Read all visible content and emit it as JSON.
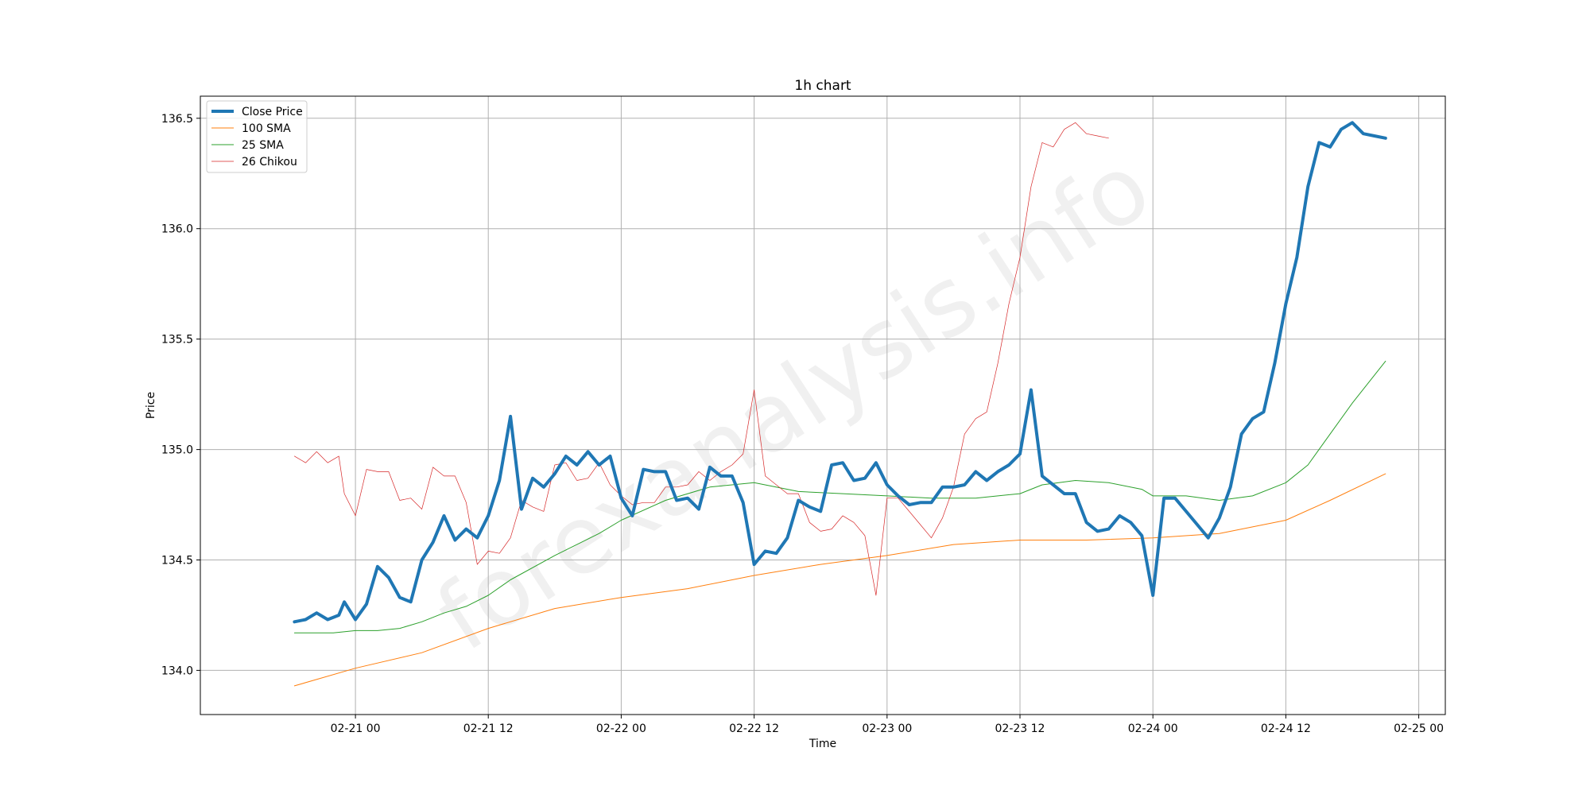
{
  "chart_data": {
    "type": "line",
    "title": "1h chart",
    "xlabel": "Time",
    "ylabel": "Price",
    "x_tick_labels": [
      "02-21 00",
      "02-21 12",
      "02-22 00",
      "02-22 12",
      "02-23 00",
      "02-23 12",
      "02-24 00",
      "02-24 12",
      "02-25 00"
    ],
    "x_ticks": [
      "2024-02-21T00:00",
      "2024-02-21T12:00",
      "2024-02-22T00:00",
      "2024-02-22T12:00",
      "2024-02-23T00:00",
      "2024-02-23T12:00",
      "2024-02-24T00:00",
      "2024-02-24T12:00",
      "2024-02-25T00:00"
    ],
    "y_ticks": [
      134.0,
      134.5,
      135.0,
      135.5,
      136.0,
      136.5
    ],
    "y_tick_labels": [
      "134.0",
      "134.5",
      "135.0",
      "135.5",
      "136.0",
      "136.5"
    ],
    "xlim": [
      "2024-02-20T10:00",
      "2024-02-25T02:24"
    ],
    "ylim": [
      133.8,
      136.6
    ],
    "grid": true,
    "legend_position": "top-left",
    "watermark": "forexanalysis.info",
    "series": [
      {
        "name": "Close Price",
        "color": "#1f77b4",
        "width": 4,
        "points": [
          [
            "2024-02-20T18:30",
            134.22
          ],
          [
            "2024-02-20T19:30",
            134.23
          ],
          [
            "2024-02-20T20:30",
            134.26
          ],
          [
            "2024-02-20T21:30",
            134.23
          ],
          [
            "2024-02-20T22:30",
            134.25
          ],
          [
            "2024-02-20T23:00",
            134.31
          ],
          [
            "2024-02-21T00:00",
            134.23
          ],
          [
            "2024-02-21T01:00",
            134.3
          ],
          [
            "2024-02-21T02:00",
            134.47
          ],
          [
            "2024-02-21T03:00",
            134.42
          ],
          [
            "2024-02-21T04:00",
            134.33
          ],
          [
            "2024-02-21T05:00",
            134.31
          ],
          [
            "2024-02-21T06:00",
            134.5
          ],
          [
            "2024-02-21T07:00",
            134.58
          ],
          [
            "2024-02-21T08:00",
            134.7
          ],
          [
            "2024-02-21T09:00",
            134.59
          ],
          [
            "2024-02-21T10:00",
            134.64
          ],
          [
            "2024-02-21T11:00",
            134.6
          ],
          [
            "2024-02-21T12:00",
            134.7
          ],
          [
            "2024-02-21T13:00",
            134.86
          ],
          [
            "2024-02-21T14:00",
            135.15
          ],
          [
            "2024-02-21T15:00",
            134.73
          ],
          [
            "2024-02-21T16:00",
            134.87
          ],
          [
            "2024-02-21T17:00",
            134.83
          ],
          [
            "2024-02-21T18:00",
            134.89
          ],
          [
            "2024-02-21T19:00",
            134.97
          ],
          [
            "2024-02-21T20:00",
            134.93
          ],
          [
            "2024-02-21T21:00",
            134.99
          ],
          [
            "2024-02-21T22:00",
            134.93
          ],
          [
            "2024-02-21T23:00",
            134.97
          ],
          [
            "2024-02-22T00:00",
            134.78
          ],
          [
            "2024-02-22T01:00",
            134.7
          ],
          [
            "2024-02-22T02:00",
            134.91
          ],
          [
            "2024-02-22T03:00",
            134.9
          ],
          [
            "2024-02-22T04:00",
            134.9
          ],
          [
            "2024-02-22T05:00",
            134.77
          ],
          [
            "2024-02-22T06:00",
            134.78
          ],
          [
            "2024-02-22T07:00",
            134.73
          ],
          [
            "2024-02-22T08:00",
            134.92
          ],
          [
            "2024-02-22T09:00",
            134.88
          ],
          [
            "2024-02-22T10:00",
            134.88
          ],
          [
            "2024-02-22T11:00",
            134.76
          ],
          [
            "2024-02-22T12:00",
            134.48
          ],
          [
            "2024-02-22T13:00",
            134.54
          ],
          [
            "2024-02-22T14:00",
            134.53
          ],
          [
            "2024-02-22T15:00",
            134.6
          ],
          [
            "2024-02-22T16:00",
            134.77
          ],
          [
            "2024-02-22T17:00",
            134.74
          ],
          [
            "2024-02-22T18:00",
            134.72
          ],
          [
            "2024-02-22T19:00",
            134.93
          ],
          [
            "2024-02-22T20:00",
            134.94
          ],
          [
            "2024-02-22T21:00",
            134.86
          ],
          [
            "2024-02-22T22:00",
            134.87
          ],
          [
            "2024-02-22T23:00",
            134.94
          ],
          [
            "2024-02-23T00:00",
            134.84
          ],
          [
            "2024-02-23T01:00",
            134.79
          ],
          [
            "2024-02-23T02:00",
            134.75
          ],
          [
            "2024-02-23T03:00",
            134.76
          ],
          [
            "2024-02-23T04:00",
            134.76
          ],
          [
            "2024-02-23T05:00",
            134.83
          ],
          [
            "2024-02-23T06:00",
            134.83
          ],
          [
            "2024-02-23T07:00",
            134.84
          ],
          [
            "2024-02-23T08:00",
            134.9
          ],
          [
            "2024-02-23T09:00",
            134.86
          ],
          [
            "2024-02-23T10:00",
            134.9
          ],
          [
            "2024-02-23T11:00",
            134.93
          ],
          [
            "2024-02-23T12:00",
            134.98
          ],
          [
            "2024-02-23T13:00",
            135.27
          ],
          [
            "2024-02-23T14:00",
            134.88
          ],
          [
            "2024-02-23T15:00",
            134.84
          ],
          [
            "2024-02-23T16:00",
            134.8
          ],
          [
            "2024-02-23T17:00",
            134.8
          ],
          [
            "2024-02-23T18:00",
            134.67
          ],
          [
            "2024-02-23T19:00",
            134.63
          ],
          [
            "2024-02-23T20:00",
            134.64
          ],
          [
            "2024-02-23T21:00",
            134.7
          ],
          [
            "2024-02-23T22:00",
            134.67
          ],
          [
            "2024-02-23T23:00",
            134.61
          ],
          [
            "2024-02-24T00:00",
            134.34
          ],
          [
            "2024-02-24T01:00",
            134.78
          ],
          [
            "2024-02-24T02:00",
            134.78
          ],
          [
            "2024-02-24T03:00",
            134.72
          ],
          [
            "2024-02-24T04:00",
            134.66
          ],
          [
            "2024-02-24T05:00",
            134.6
          ],
          [
            "2024-02-24T06:00",
            134.69
          ],
          [
            "2024-02-24T07:00",
            134.83
          ],
          [
            "2024-02-24T08:00",
            135.07
          ],
          [
            "2024-02-24T09:00",
            135.14
          ],
          [
            "2024-02-24T10:00",
            135.17
          ],
          [
            "2024-02-24T11:00",
            135.39
          ],
          [
            "2024-02-24T12:00",
            135.66
          ],
          [
            "2024-02-24T13:00",
            135.87
          ],
          [
            "2024-02-24T14:00",
            136.19
          ],
          [
            "2024-02-24T15:00",
            136.39
          ],
          [
            "2024-02-24T16:00",
            136.37
          ],
          [
            "2024-02-24T17:00",
            136.45
          ],
          [
            "2024-02-24T18:00",
            136.48
          ],
          [
            "2024-02-24T19:00",
            136.43
          ],
          [
            "2024-02-24T20:00",
            136.42
          ],
          [
            "2024-02-24T21:00",
            136.41
          ]
        ]
      },
      {
        "name": "100 SMA",
        "color": "#ff7f0e",
        "width": 1,
        "points": [
          [
            "2024-02-20T18:30",
            133.93
          ],
          [
            "2024-02-21T00:00",
            134.01
          ],
          [
            "2024-02-21T06:00",
            134.08
          ],
          [
            "2024-02-21T12:00",
            134.19
          ],
          [
            "2024-02-21T18:00",
            134.28
          ],
          [
            "2024-02-22T00:00",
            134.33
          ],
          [
            "2024-02-22T06:00",
            134.37
          ],
          [
            "2024-02-22T12:00",
            134.43
          ],
          [
            "2024-02-22T18:00",
            134.48
          ],
          [
            "2024-02-23T00:00",
            134.52
          ],
          [
            "2024-02-23T06:00",
            134.57
          ],
          [
            "2024-02-23T12:00",
            134.59
          ],
          [
            "2024-02-23T18:00",
            134.59
          ],
          [
            "2024-02-24T00:00",
            134.6
          ],
          [
            "2024-02-24T06:00",
            134.62
          ],
          [
            "2024-02-24T12:00",
            134.68
          ],
          [
            "2024-02-24T16:00",
            134.77
          ],
          [
            "2024-02-24T21:00",
            134.89
          ]
        ]
      },
      {
        "name": "25 SMA",
        "color": "#2ca02c",
        "width": 1,
        "points": [
          [
            "2024-02-20T18:30",
            134.17
          ],
          [
            "2024-02-20T22:00",
            134.17
          ],
          [
            "2024-02-21T00:00",
            134.18
          ],
          [
            "2024-02-21T02:00",
            134.18
          ],
          [
            "2024-02-21T04:00",
            134.19
          ],
          [
            "2024-02-21T06:00",
            134.22
          ],
          [
            "2024-02-21T08:00",
            134.26
          ],
          [
            "2024-02-21T10:00",
            134.29
          ],
          [
            "2024-02-21T12:00",
            134.34
          ],
          [
            "2024-02-21T14:00",
            134.41
          ],
          [
            "2024-02-21T18:00",
            134.52
          ],
          [
            "2024-02-21T22:00",
            134.62
          ],
          [
            "2024-02-22T00:00",
            134.68
          ],
          [
            "2024-02-22T04:00",
            134.77
          ],
          [
            "2024-02-22T08:00",
            134.83
          ],
          [
            "2024-02-22T12:00",
            134.85
          ],
          [
            "2024-02-22T16:00",
            134.81
          ],
          [
            "2024-02-22T20:00",
            134.8
          ],
          [
            "2024-02-23T00:00",
            134.79
          ],
          [
            "2024-02-23T04:00",
            134.78
          ],
          [
            "2024-02-23T08:00",
            134.78
          ],
          [
            "2024-02-23T12:00",
            134.8
          ],
          [
            "2024-02-23T14:00",
            134.84
          ],
          [
            "2024-02-23T17:00",
            134.86
          ],
          [
            "2024-02-23T20:00",
            134.85
          ],
          [
            "2024-02-23T23:00",
            134.82
          ],
          [
            "2024-02-24T00:00",
            134.79
          ],
          [
            "2024-02-24T03:00",
            134.79
          ],
          [
            "2024-02-24T06:00",
            134.77
          ],
          [
            "2024-02-24T09:00",
            134.79
          ],
          [
            "2024-02-24T12:00",
            134.85
          ],
          [
            "2024-02-24T14:00",
            134.93
          ],
          [
            "2024-02-24T16:00",
            135.07
          ],
          [
            "2024-02-24T18:00",
            135.21
          ],
          [
            "2024-02-24T21:00",
            135.4
          ]
        ]
      },
      {
        "name": "26 Chikou",
        "color": "#d62728",
        "width": 0.7,
        "points": [
          [
            "2024-02-20T18:30",
            134.97
          ],
          [
            "2024-02-20T19:30",
            134.94
          ],
          [
            "2024-02-20T20:30",
            134.99
          ],
          [
            "2024-02-20T21:30",
            134.94
          ],
          [
            "2024-02-20T22:30",
            134.97
          ],
          [
            "2024-02-20T23:00",
            134.8
          ],
          [
            "2024-02-21T00:00",
            134.7
          ],
          [
            "2024-02-21T01:00",
            134.91
          ],
          [
            "2024-02-21T02:00",
            134.9
          ],
          [
            "2024-02-21T03:00",
            134.9
          ],
          [
            "2024-02-21T04:00",
            134.77
          ],
          [
            "2024-02-21T05:00",
            134.78
          ],
          [
            "2024-02-21T06:00",
            134.73
          ],
          [
            "2024-02-21T07:00",
            134.92
          ],
          [
            "2024-02-21T08:00",
            134.88
          ],
          [
            "2024-02-21T09:00",
            134.88
          ],
          [
            "2024-02-21T10:00",
            134.76
          ],
          [
            "2024-02-21T11:00",
            134.48
          ],
          [
            "2024-02-21T12:00",
            134.54
          ],
          [
            "2024-02-21T13:00",
            134.53
          ],
          [
            "2024-02-21T14:00",
            134.6
          ],
          [
            "2024-02-21T15:00",
            134.77
          ],
          [
            "2024-02-21T16:00",
            134.74
          ],
          [
            "2024-02-21T17:00",
            134.72
          ],
          [
            "2024-02-21T18:00",
            134.93
          ],
          [
            "2024-02-21T19:00",
            134.94
          ],
          [
            "2024-02-21T20:00",
            134.86
          ],
          [
            "2024-02-21T21:00",
            134.87
          ],
          [
            "2024-02-21T22:00",
            134.94
          ],
          [
            "2024-02-21T23:00",
            134.84
          ],
          [
            "2024-02-22T00:00",
            134.79
          ],
          [
            "2024-02-22T01:00",
            134.75
          ],
          [
            "2024-02-22T02:00",
            134.76
          ],
          [
            "2024-02-22T03:00",
            134.76
          ],
          [
            "2024-02-22T04:00",
            134.83
          ],
          [
            "2024-02-22T05:00",
            134.83
          ],
          [
            "2024-02-22T06:00",
            134.84
          ],
          [
            "2024-02-22T07:00",
            134.9
          ],
          [
            "2024-02-22T08:00",
            134.86
          ],
          [
            "2024-02-22T09:00",
            134.9
          ],
          [
            "2024-02-22T10:00",
            134.93
          ],
          [
            "2024-02-22T11:00",
            134.98
          ],
          [
            "2024-02-22T12:00",
            135.27
          ],
          [
            "2024-02-22T13:00",
            134.88
          ],
          [
            "2024-02-22T14:00",
            134.84
          ],
          [
            "2024-02-22T15:00",
            134.8
          ],
          [
            "2024-02-22T16:00",
            134.8
          ],
          [
            "2024-02-22T17:00",
            134.67
          ],
          [
            "2024-02-22T18:00",
            134.63
          ],
          [
            "2024-02-22T19:00",
            134.64
          ],
          [
            "2024-02-22T20:00",
            134.7
          ],
          [
            "2024-02-22T21:00",
            134.67
          ],
          [
            "2024-02-22T22:00",
            134.61
          ],
          [
            "2024-02-22T23:00",
            134.34
          ],
          [
            "2024-02-23T00:00",
            134.78
          ],
          [
            "2024-02-23T01:00",
            134.78
          ],
          [
            "2024-02-23T02:00",
            134.72
          ],
          [
            "2024-02-23T03:00",
            134.66
          ],
          [
            "2024-02-23T04:00",
            134.6
          ],
          [
            "2024-02-23T05:00",
            134.69
          ],
          [
            "2024-02-23T06:00",
            134.83
          ],
          [
            "2024-02-23T07:00",
            135.07
          ],
          [
            "2024-02-23T08:00",
            135.14
          ],
          [
            "2024-02-23T09:00",
            135.17
          ],
          [
            "2024-02-23T10:00",
            135.39
          ],
          [
            "2024-02-23T11:00",
            135.66
          ],
          [
            "2024-02-23T12:00",
            135.87
          ],
          [
            "2024-02-23T13:00",
            136.19
          ],
          [
            "2024-02-23T14:00",
            136.39
          ],
          [
            "2024-02-23T15:00",
            136.37
          ],
          [
            "2024-02-23T16:00",
            136.45
          ],
          [
            "2024-02-23T17:00",
            136.48
          ],
          [
            "2024-02-23T18:00",
            136.43
          ],
          [
            "2024-02-23T19:00",
            136.42
          ],
          [
            "2024-02-23T20:00",
            136.41
          ]
        ]
      }
    ]
  }
}
